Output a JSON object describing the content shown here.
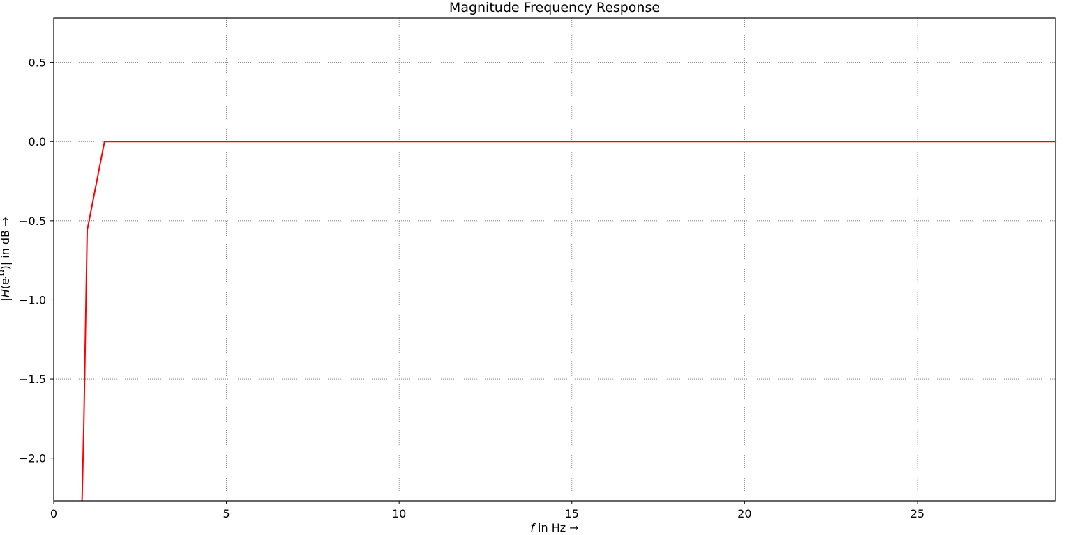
{
  "chart_data": {
    "type": "line",
    "title": "Magnitude Frequency Response",
    "xlabel_italic": "f",
    "xlabel_rest": " in Hz →",
    "ylabel_pre": "|",
    "ylabel_italic": "H",
    "ylabel_mid": "(e",
    "ylabel_sup": "jΩ",
    "ylabel_post": ")| in dB →",
    "xlim": [
      0,
      29
    ],
    "ylim": [
      -2.27,
      0.78
    ],
    "x_ticks": [
      0,
      5,
      10,
      15,
      20,
      25
    ],
    "x_tick_labels": [
      "0",
      "5",
      "10",
      "15",
      "20",
      "25"
    ],
    "y_ticks": [
      -2.0,
      -1.5,
      -1.0,
      -0.5,
      0.0,
      0.5
    ],
    "y_tick_labels": [
      "−2.0",
      "−1.5",
      "−1.0",
      "−0.5",
      "0.0",
      "0.5"
    ],
    "grid": true,
    "legend": false,
    "series": [
      {
        "color": "#ff0000",
        "x": [
          0.82,
          0.87,
          0.97,
          1.47,
          2.0,
          3.0,
          5.0,
          10.0,
          15.0,
          20.0,
          25.0,
          29.0
        ],
        "y": [
          -2.27,
          -1.8,
          -0.56,
          0.0,
          0.0,
          0.0,
          0.0,
          0.0,
          0.0,
          0.0,
          0.0,
          0.0
        ]
      }
    ]
  }
}
